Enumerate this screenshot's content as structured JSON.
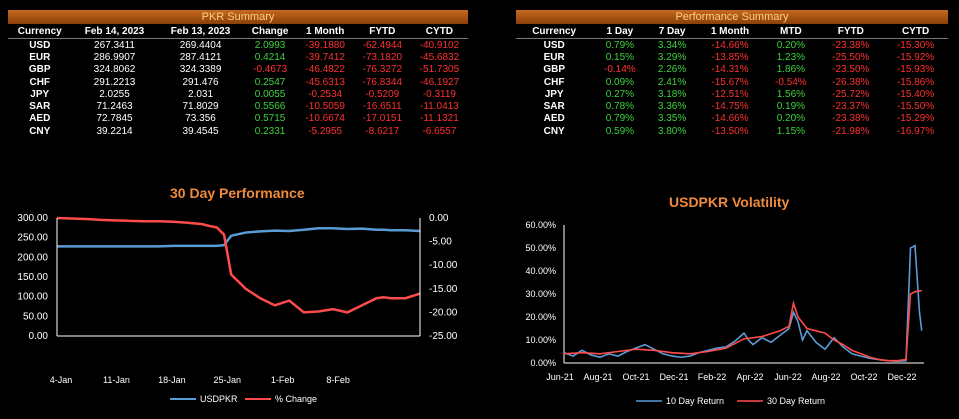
{
  "pkr_summary": {
    "title": "PKR Summary",
    "headers": [
      "Currency",
      "Feb 14, 2023",
      "Feb 13, 2023",
      "Change",
      "1 Month",
      "FYTD",
      "CYTD"
    ],
    "rows": [
      [
        "USD",
        "267.3411",
        "269.4404",
        "2.0993",
        "-39.1880",
        "-62.4944",
        "-40.9102"
      ],
      [
        "EUR",
        "286.9907",
        "287.4121",
        "0.4214",
        "-39.7412",
        "-73.1820",
        "-45.6832"
      ],
      [
        "GBP",
        "324.8062",
        "324.3389",
        "-0.4673",
        "-46.4822",
        "-76.3272",
        "-51.7305"
      ],
      [
        "CHF",
        "291.2213",
        "291.476",
        "0.2547",
        "-45.6313",
        "-76.8344",
        "-46.1927"
      ],
      [
        "JPY",
        "2.0255",
        "2.031",
        "0.0055",
        "-0.2534",
        "-0.5209",
        "-0.3119"
      ],
      [
        "SAR",
        "71.2463",
        "71.8029",
        "0.5566",
        "-10.5059",
        "-16.6511",
        "-11.0413"
      ],
      [
        "AED",
        "72.7845",
        "73.356",
        "0.5715",
        "-10.6674",
        "-17.0151",
        "-11.1321"
      ],
      [
        "CNY",
        "39.2214",
        "39.4545",
        "0.2331",
        "-5.2955",
        "-8.6217",
        "-6.6557"
      ]
    ]
  },
  "performance_summary": {
    "title": "Performance Summary",
    "headers": [
      "Currency",
      "1 Day",
      "7 Day",
      "1 Month",
      "MTD",
      "FYTD",
      "CYTD"
    ],
    "rows": [
      [
        "USD",
        "0.79%",
        "3.34%",
        "-14.66%",
        "0.20%",
        "-23.38%",
        "-15.30%"
      ],
      [
        "EUR",
        "0.15%",
        "3.29%",
        "-13.85%",
        "1.23%",
        "-25.50%",
        "-15.92%"
      ],
      [
        "GBP",
        "-0.14%",
        "2.26%",
        "-14.31%",
        "1.86%",
        "-23.50%",
        "-15.93%"
      ],
      [
        "CHF",
        "0.09%",
        "2.41%",
        "-15.67%",
        "-0.54%",
        "-26.38%",
        "-15.86%"
      ],
      [
        "JPY",
        "0.27%",
        "3.18%",
        "-12.51%",
        "1.56%",
        "-25.72%",
        "-15.40%"
      ],
      [
        "SAR",
        "0.78%",
        "3.36%",
        "-14.75%",
        "0.19%",
        "-23.37%",
        "-15.50%"
      ],
      [
        "AED",
        "0.79%",
        "3.35%",
        "-14.66%",
        "0.20%",
        "-23.38%",
        "-15.29%"
      ],
      [
        "CNY",
        "0.59%",
        "3.80%",
        "-13.50%",
        "1.15%",
        "-21.98%",
        "-16.97%"
      ]
    ]
  },
  "colors": {
    "blue": "#5b9bd5",
    "red": "#ff4b4b",
    "orange": "#f08a3c",
    "positive": "#3fd13f",
    "negative": "#ff3030"
  },
  "chart_data": [
    {
      "type": "line",
      "title": "30 Day Performance",
      "categories": [
        "4-Jan",
        "11-Jan",
        "18-Jan",
        "25-Jan",
        "1-Feb",
        "8-Feb"
      ],
      "x": [
        0,
        2,
        4,
        6,
        8,
        10,
        12,
        14,
        16,
        18,
        20,
        21,
        22,
        23,
        24,
        26,
        28,
        30,
        32,
        34,
        36,
        38,
        40,
        42,
        44,
        45,
        46,
        48,
        50
      ],
      "series": [
        {
          "name": "USDPKR",
          "axis": "left",
          "values": [
            228,
            228,
            228,
            228,
            228,
            228,
            228,
            228,
            229,
            229,
            229,
            229,
            229,
            231,
            255,
            263,
            266,
            268,
            267,
            270,
            274,
            274,
            272,
            273,
            270,
            270,
            269,
            269,
            267
          ]
        },
        {
          "name": "% Change",
          "axis": "right",
          "values": [
            0.0,
            -0.1,
            -0.2,
            -0.4,
            -0.5,
            -0.6,
            -0.7,
            -0.7,
            -0.8,
            -1.0,
            -1.3,
            -1.7,
            -2.0,
            -3.5,
            -12.0,
            -15.0,
            -17.0,
            -18.5,
            -17.5,
            -20.0,
            -19.8,
            -19.3,
            -20.0,
            -18.5,
            -17.0,
            -16.8,
            -17.0,
            -17.0,
            -16.0
          ]
        }
      ],
      "y_left": {
        "min": 0,
        "max": 300,
        "ticks": [
          "0.00",
          "50.00",
          "100.00",
          "150.00",
          "200.00",
          "250.00",
          "300.00"
        ]
      },
      "y_right": {
        "min": -25,
        "max": 0,
        "ticks": [
          "-25.00",
          "-20.00",
          "-15.00",
          "-10.00",
          "-5.00",
          "0.00"
        ]
      },
      "legend": "bottom"
    },
    {
      "type": "line",
      "title": "USDPKR Volatility",
      "categories": [
        "Jun-21",
        "Aug-21",
        "Oct-21",
        "Dec-21",
        "Feb-22",
        "Apr-22",
        "Jun-22",
        "Aug-22",
        "Oct-22",
        "Dec-22"
      ],
      "series": [
        {
          "name": "10 Day Return",
          "values": [
            [
              0,
              4.5
            ],
            [
              2,
              3.0
            ],
            [
              4,
              5.5
            ],
            [
              6,
              3.5
            ],
            [
              8,
              2.5
            ],
            [
              10,
              4.0
            ],
            [
              12,
              3.0
            ],
            [
              14,
              5.0
            ],
            [
              16,
              6.5
            ],
            [
              18,
              8.0
            ],
            [
              20,
              6.0
            ],
            [
              22,
              4.0
            ],
            [
              24,
              3.0
            ],
            [
              26,
              2.5
            ],
            [
              28,
              3.0
            ],
            [
              30,
              4.5
            ],
            [
              32,
              5.5
            ],
            [
              34,
              6.5
            ],
            [
              36,
              7.0
            ],
            [
              38,
              9.5
            ],
            [
              40,
              13.0
            ],
            [
              41,
              10.0
            ],
            [
              42,
              8.0
            ],
            [
              44,
              11.0
            ],
            [
              46,
              9.0
            ],
            [
              48,
              12.0
            ],
            [
              50,
              15.0
            ],
            [
              51,
              22.0
            ],
            [
              52,
              18.0
            ],
            [
              53,
              10.0
            ],
            [
              54,
              14.0
            ],
            [
              56,
              9.0
            ],
            [
              58,
              6.0
            ],
            [
              60,
              11.0
            ],
            [
              62,
              7.0
            ],
            [
              64,
              4.0
            ],
            [
              66,
              3.0
            ],
            [
              68,
              2.0
            ],
            [
              70,
              1.5
            ],
            [
              72,
              1.0
            ],
            [
              74,
              0.8
            ],
            [
              76,
              1.0
            ],
            [
              77,
              50.0
            ],
            [
              78,
              51.0
            ],
            [
              79,
              22.0
            ],
            [
              79.5,
              14.0
            ]
          ]
        },
        {
          "name": "30 Day Return",
          "values": [
            [
              0,
              4.0
            ],
            [
              4,
              4.5
            ],
            [
              8,
              4.0
            ],
            [
              12,
              5.0
            ],
            [
              16,
              6.0
            ],
            [
              20,
              5.5
            ],
            [
              24,
              4.5
            ],
            [
              28,
              4.0
            ],
            [
              32,
              5.0
            ],
            [
              36,
              6.5
            ],
            [
              40,
              10.5
            ],
            [
              44,
              11.5
            ],
            [
              48,
              14.0
            ],
            [
              50,
              16.0
            ],
            [
              51,
              26.0
            ],
            [
              52,
              20.0
            ],
            [
              54,
              15.0
            ],
            [
              56,
              14.0
            ],
            [
              58,
              13.0
            ],
            [
              60,
              10.0
            ],
            [
              62,
              8.0
            ],
            [
              64,
              5.5
            ],
            [
              66,
              4.0
            ],
            [
              68,
              2.5
            ],
            [
              70,
              1.5
            ],
            [
              72,
              1.0
            ],
            [
              74,
              1.0
            ],
            [
              76,
              1.5
            ],
            [
              77,
              30.0
            ],
            [
              78,
              31.0
            ],
            [
              79.5,
              31.5
            ]
          ]
        }
      ],
      "x_range": [
        0,
        80
      ],
      "y": {
        "min": 0,
        "max": 60,
        "ticks": [
          "0.00%",
          "10.00%",
          "20.00%",
          "30.00%",
          "40.00%",
          "50.00%",
          "60.00%"
        ]
      },
      "legend": "bottom"
    }
  ]
}
